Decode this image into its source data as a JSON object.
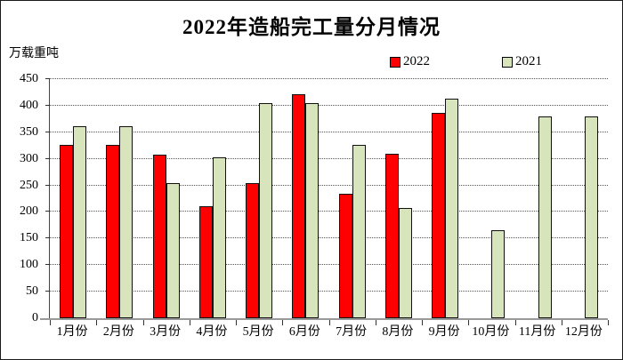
{
  "chart_data": {
    "type": "bar",
    "title": "2022年造船完工量分月情况",
    "xlabel": "",
    "ylabel": "万载重吨",
    "categories": [
      "1月份",
      "2月份",
      "3月份",
      "4月份",
      "5月份",
      "6月份",
      "7月份",
      "8月份",
      "9月份",
      "10月份",
      "11月份",
      "12月份"
    ],
    "series": [
      {
        "name": "2022",
        "color": "#ff0000",
        "values": [
          327,
          327,
          308,
          210,
          255,
          422,
          234,
          309,
          386,
          null,
          null,
          null
        ]
      },
      {
        "name": "2021",
        "color": "#d8e4bc",
        "values": [
          361,
          361,
          255,
          302,
          405,
          405,
          327,
          208,
          414,
          165,
          380,
          380
        ]
      }
    ],
    "ylim": [
      0,
      450
    ],
    "ytick_step": 50,
    "yticks": [
      0,
      50,
      100,
      150,
      200,
      250,
      300,
      350,
      400,
      450
    ],
    "grid": true,
    "gridline_style": "dotted",
    "legend_position": "top-right",
    "bar_border_color": "#111111",
    "axis_color": "#999999",
    "background_color": "#ffffff"
  }
}
